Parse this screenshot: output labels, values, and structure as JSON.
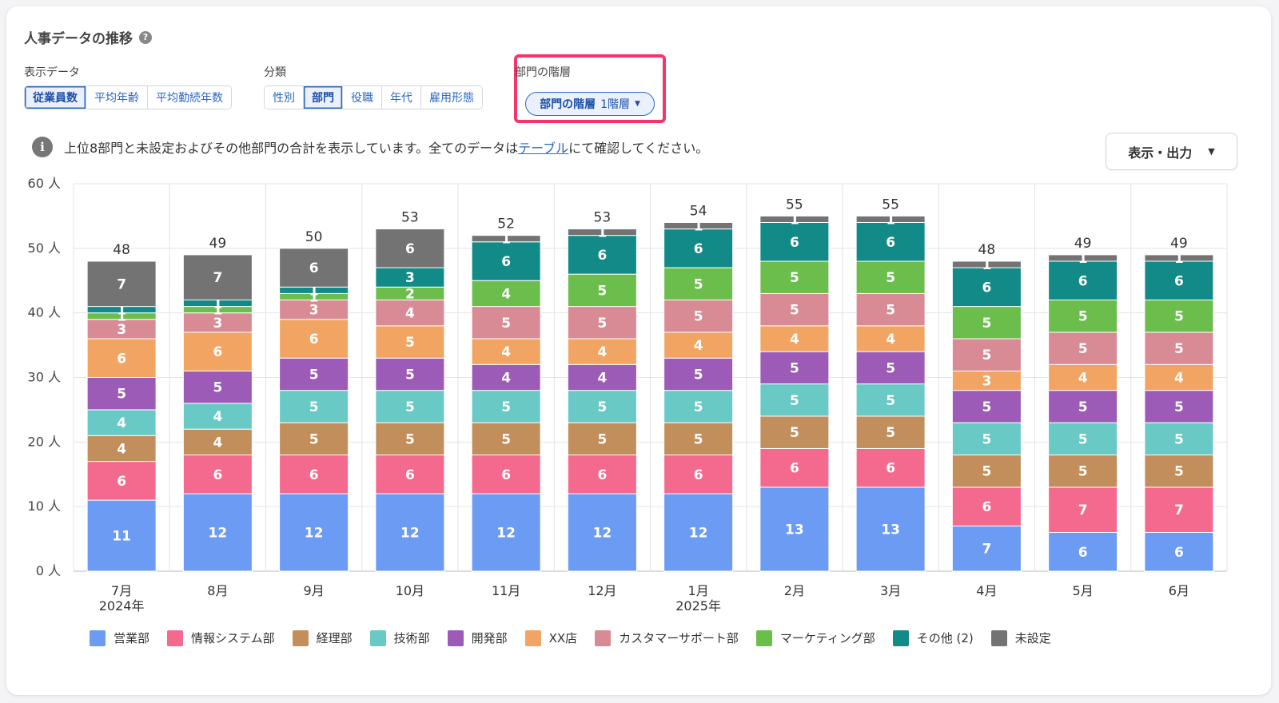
{
  "title": "人事データの推移",
  "controls": {
    "display_label": "表示データ",
    "display_options": [
      "従業員数",
      "平均年齢",
      "平均勤続年数"
    ],
    "display_selected": 0,
    "category_label": "分類",
    "category_options": [
      "性別",
      "部門",
      "役職",
      "年代",
      "雇用形態"
    ],
    "category_selected": 1,
    "hierarchy_label": "部門の階層",
    "hierarchy_pill_bold": "部門の階層",
    "hierarchy_pill_value": "1階層"
  },
  "info": {
    "text_before": "上位8部門と未設定およびその他部門の合計を表示しています。全てのデータは",
    "link_text": "テーブル",
    "text_after": "にて確認してください。"
  },
  "export_label": "表示・出力",
  "colors": {
    "accent": "#2b67c6",
    "highlight": "#f5356a"
  },
  "chart_data": {
    "type": "bar",
    "stacked": true,
    "y_unit": "人",
    "ylim": [
      0,
      60
    ],
    "yticks": [
      0,
      10,
      20,
      30,
      40,
      50,
      60
    ],
    "grid": true,
    "legend_position": "bottom",
    "categories": [
      "7月",
      "8月",
      "9月",
      "10月",
      "11月",
      "12月",
      "1月",
      "2月",
      "3月",
      "4月",
      "5月",
      "6月"
    ],
    "category_sublabels": [
      "2024年",
      "",
      "",
      "",
      "",
      "",
      "2025年",
      "",
      "",
      "",
      "",
      ""
    ],
    "totals": [
      48,
      49,
      50,
      53,
      52,
      53,
      54,
      55,
      55,
      48,
      49,
      49
    ],
    "series": [
      {
        "name": "営業部",
        "color": "#6b9bf3",
        "values": [
          11,
          12,
          12,
          12,
          12,
          12,
          12,
          13,
          13,
          7,
          6,
          6
        ]
      },
      {
        "name": "情報システム部",
        "color": "#f4698e",
        "values": [
          6,
          6,
          6,
          6,
          6,
          6,
          6,
          6,
          6,
          6,
          7,
          7
        ]
      },
      {
        "name": "経理部",
        "color": "#c28e5c",
        "values": [
          4,
          4,
          5,
          5,
          5,
          5,
          5,
          5,
          5,
          5,
          5,
          5
        ]
      },
      {
        "name": "技術部",
        "color": "#68c9c5",
        "values": [
          4,
          4,
          5,
          5,
          5,
          5,
          5,
          5,
          5,
          5,
          5,
          5
        ]
      },
      {
        "name": "開発部",
        "color": "#9b5bb6",
        "values": [
          5,
          5,
          5,
          5,
          4,
          4,
          5,
          5,
          5,
          5,
          5,
          5
        ]
      },
      {
        "name": "XX店",
        "color": "#f2a562",
        "values": [
          6,
          6,
          6,
          5,
          4,
          4,
          4,
          4,
          4,
          3,
          4,
          4
        ]
      },
      {
        "name": "カスタマーサポート部",
        "color": "#d98b95",
        "values": [
          3,
          3,
          3,
          4,
          5,
          5,
          5,
          5,
          5,
          5,
          5,
          5
        ]
      },
      {
        "name": "マーケティング部",
        "color": "#6cbe4c",
        "values": [
          1,
          1,
          1,
          2,
          4,
          5,
          5,
          5,
          5,
          5,
          5,
          5
        ]
      },
      {
        "name": "その他 (2)",
        "color": "#128a87",
        "values": [
          1,
          1,
          1,
          3,
          6,
          6,
          6,
          6,
          6,
          6,
          6,
          6
        ]
      },
      {
        "name": "未設定",
        "color": "#737373",
        "values": [
          7,
          7,
          6,
          6,
          1,
          1,
          1,
          1,
          1,
          1,
          1,
          1
        ]
      }
    ]
  }
}
